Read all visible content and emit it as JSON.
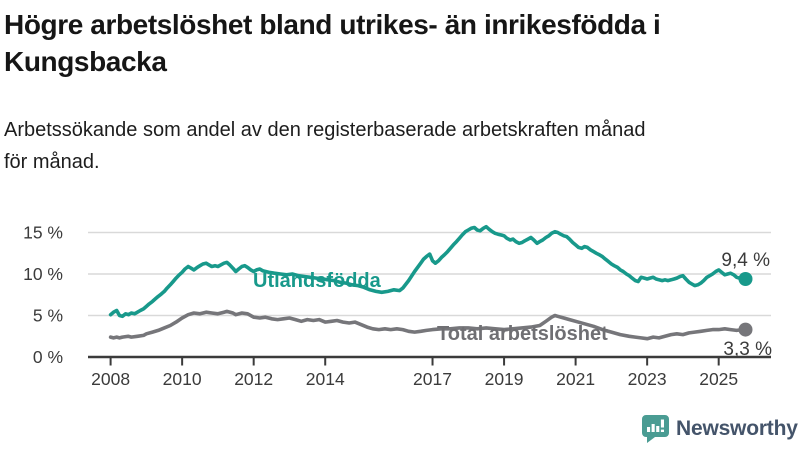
{
  "header": {
    "title_line1": "Högre arbetslöshet bland utrikes- än inrikesfödda i",
    "title_line2": "Kungsbacka",
    "subtitle_line1": "Arbetssökande som andel av den registerbaserade arbetskraften månad",
    "subtitle_line2": "för månad."
  },
  "branding": {
    "wordmark": "Newsworthy",
    "icon": "newsworthy-speech-bubble-chart-icon",
    "icon_color": "#4a9c93",
    "text_color": "#44546a"
  },
  "chart_data": {
    "type": "line",
    "title": "Högre arbetslöshet bland utrikes- än inrikesfödda i Kungsbacka",
    "subtitle": "Arbetssökande som andel av den registerbaserade arbetskraften månad för månad.",
    "x_unit": "year, monthly observations",
    "xlim": [
      2008,
      2025.75
    ],
    "ylim": [
      0,
      16.5
    ],
    "grid": true,
    "legend_position": "inline-labels",
    "axis_color": "#3b3b3b",
    "grid_color": "#d9d9d9",
    "tick_label_color": "#3b3b3b",
    "x_ticks": [
      "2008",
      "2010",
      "2012",
      "2014",
      "2017",
      "2019",
      "2021",
      "2023",
      "2025"
    ],
    "x_tick_years": [
      2008,
      2010,
      2012,
      2014,
      2017,
      2019,
      2021,
      2023,
      2025
    ],
    "y_ticks": [
      "0 %",
      "5 %",
      "10 %",
      "15 %"
    ],
    "y_tick_values": [
      0,
      5,
      10,
      15
    ],
    "series": [
      {
        "name": "Utlandsfödda",
        "color": "#18998b",
        "end_label": "9,4 %",
        "end_value": 9.4,
        "points": [
          [
            2008.0,
            5.1
          ],
          [
            2008.08,
            5.4
          ],
          [
            2008.17,
            5.6
          ],
          [
            2008.25,
            5.0
          ],
          [
            2008.33,
            4.9
          ],
          [
            2008.42,
            5.2
          ],
          [
            2008.5,
            5.1
          ],
          [
            2008.58,
            5.3
          ],
          [
            2008.67,
            5.2
          ],
          [
            2008.75,
            5.4
          ],
          [
            2008.83,
            5.6
          ],
          [
            2008.92,
            5.8
          ],
          [
            2009.0,
            6.1
          ],
          [
            2009.08,
            6.4
          ],
          [
            2009.17,
            6.7
          ],
          [
            2009.25,
            7.0
          ],
          [
            2009.33,
            7.3
          ],
          [
            2009.42,
            7.6
          ],
          [
            2009.5,
            7.9
          ],
          [
            2009.58,
            8.3
          ],
          [
            2009.67,
            8.7
          ],
          [
            2009.75,
            9.1
          ],
          [
            2009.83,
            9.5
          ],
          [
            2009.92,
            9.9
          ],
          [
            2010.0,
            10.2
          ],
          [
            2010.08,
            10.6
          ],
          [
            2010.17,
            10.9
          ],
          [
            2010.25,
            10.7
          ],
          [
            2010.33,
            10.5
          ],
          [
            2010.42,
            10.8
          ],
          [
            2010.5,
            11.0
          ],
          [
            2010.58,
            11.2
          ],
          [
            2010.67,
            11.3
          ],
          [
            2010.75,
            11.1
          ],
          [
            2010.83,
            10.9
          ],
          [
            2010.92,
            11.0
          ],
          [
            2011.0,
            10.9
          ],
          [
            2011.08,
            11.1
          ],
          [
            2011.17,
            11.3
          ],
          [
            2011.25,
            11.4
          ],
          [
            2011.33,
            11.1
          ],
          [
            2011.42,
            10.7
          ],
          [
            2011.5,
            10.3
          ],
          [
            2011.58,
            10.6
          ],
          [
            2011.67,
            10.9
          ],
          [
            2011.75,
            11.0
          ],
          [
            2011.83,
            10.8
          ],
          [
            2011.92,
            10.5
          ],
          [
            2012.0,
            10.3
          ],
          [
            2012.08,
            10.5
          ],
          [
            2012.17,
            10.6
          ],
          [
            2012.25,
            10.4
          ],
          [
            2012.42,
            10.2
          ],
          [
            2012.58,
            10.1
          ],
          [
            2012.75,
            10.0
          ],
          [
            2012.92,
            9.9
          ],
          [
            2013.08,
            10.0
          ],
          [
            2013.25,
            9.8
          ],
          [
            2013.42,
            9.7
          ],
          [
            2013.58,
            9.6
          ],
          [
            2013.75,
            9.5
          ],
          [
            2013.92,
            9.4
          ],
          [
            2014.08,
            9.3
          ],
          [
            2014.25,
            9.2
          ],
          [
            2014.42,
            9.0
          ],
          [
            2014.58,
            8.9
          ],
          [
            2014.75,
            8.7
          ],
          [
            2014.92,
            8.6
          ],
          [
            2015.08,
            8.4
          ],
          [
            2015.25,
            8.1
          ],
          [
            2015.42,
            7.9
          ],
          [
            2015.58,
            7.8
          ],
          [
            2015.75,
            7.9
          ],
          [
            2015.92,
            8.1
          ],
          [
            2016.08,
            8.0
          ],
          [
            2016.17,
            8.3
          ],
          [
            2016.33,
            9.2
          ],
          [
            2016.5,
            10.3
          ],
          [
            2016.67,
            11.3
          ],
          [
            2016.75,
            11.8
          ],
          [
            2016.83,
            12.1
          ],
          [
            2016.92,
            12.4
          ],
          [
            2017.0,
            11.6
          ],
          [
            2017.08,
            11.3
          ],
          [
            2017.17,
            11.6
          ],
          [
            2017.25,
            12.0
          ],
          [
            2017.33,
            12.3
          ],
          [
            2017.42,
            12.7
          ],
          [
            2017.5,
            13.1
          ],
          [
            2017.58,
            13.5
          ],
          [
            2017.67,
            13.9
          ],
          [
            2017.75,
            14.3
          ],
          [
            2017.83,
            14.7
          ],
          [
            2017.92,
            15.1
          ],
          [
            2018.0,
            15.3
          ],
          [
            2018.08,
            15.5
          ],
          [
            2018.17,
            15.6
          ],
          [
            2018.25,
            15.3
          ],
          [
            2018.33,
            15.2
          ],
          [
            2018.42,
            15.5
          ],
          [
            2018.5,
            15.7
          ],
          [
            2018.58,
            15.4
          ],
          [
            2018.67,
            15.1
          ],
          [
            2018.75,
            14.9
          ],
          [
            2018.83,
            14.8
          ],
          [
            2018.92,
            14.7
          ],
          [
            2019.0,
            14.6
          ],
          [
            2019.08,
            14.3
          ],
          [
            2019.17,
            14.1
          ],
          [
            2019.25,
            14.2
          ],
          [
            2019.33,
            13.9
          ],
          [
            2019.42,
            13.7
          ],
          [
            2019.5,
            13.8
          ],
          [
            2019.58,
            14.0
          ],
          [
            2019.67,
            14.2
          ],
          [
            2019.75,
            14.4
          ],
          [
            2019.83,
            14.1
          ],
          [
            2019.92,
            13.7
          ],
          [
            2020.0,
            13.9
          ],
          [
            2020.08,
            14.1
          ],
          [
            2020.17,
            14.4
          ],
          [
            2020.25,
            14.6
          ],
          [
            2020.33,
            14.9
          ],
          [
            2020.42,
            15.1
          ],
          [
            2020.5,
            15.0
          ],
          [
            2020.58,
            14.8
          ],
          [
            2020.67,
            14.6
          ],
          [
            2020.75,
            14.5
          ],
          [
            2020.83,
            14.2
          ],
          [
            2020.92,
            13.8
          ],
          [
            2021.0,
            13.5
          ],
          [
            2021.08,
            13.2
          ],
          [
            2021.17,
            13.1
          ],
          [
            2021.25,
            13.3
          ],
          [
            2021.33,
            13.2
          ],
          [
            2021.42,
            12.9
          ],
          [
            2021.5,
            12.7
          ],
          [
            2021.58,
            12.5
          ],
          [
            2021.67,
            12.3
          ],
          [
            2021.75,
            12.1
          ],
          [
            2021.83,
            11.8
          ],
          [
            2021.92,
            11.5
          ],
          [
            2022.0,
            11.2
          ],
          [
            2022.08,
            11.0
          ],
          [
            2022.17,
            10.8
          ],
          [
            2022.25,
            10.5
          ],
          [
            2022.33,
            10.3
          ],
          [
            2022.42,
            10.0
          ],
          [
            2022.5,
            9.8
          ],
          [
            2022.58,
            9.5
          ],
          [
            2022.67,
            9.2
          ],
          [
            2022.75,
            9.1
          ],
          [
            2022.83,
            9.6
          ],
          [
            2022.92,
            9.5
          ],
          [
            2023.0,
            9.4
          ],
          [
            2023.08,
            9.5
          ],
          [
            2023.17,
            9.6
          ],
          [
            2023.25,
            9.4
          ],
          [
            2023.33,
            9.3
          ],
          [
            2023.42,
            9.2
          ],
          [
            2023.5,
            9.3
          ],
          [
            2023.58,
            9.2
          ],
          [
            2023.67,
            9.3
          ],
          [
            2023.75,
            9.4
          ],
          [
            2023.83,
            9.5
          ],
          [
            2023.92,
            9.7
          ],
          [
            2024.0,
            9.8
          ],
          [
            2024.08,
            9.4
          ],
          [
            2024.17,
            9.0
          ],
          [
            2024.25,
            8.8
          ],
          [
            2024.33,
            8.6
          ],
          [
            2024.42,
            8.7
          ],
          [
            2024.5,
            8.9
          ],
          [
            2024.58,
            9.2
          ],
          [
            2024.67,
            9.6
          ],
          [
            2024.75,
            9.8
          ],
          [
            2024.83,
            10.0
          ],
          [
            2024.92,
            10.3
          ],
          [
            2025.0,
            10.5
          ],
          [
            2025.08,
            10.2
          ],
          [
            2025.17,
            9.9
          ],
          [
            2025.25,
            10.0
          ],
          [
            2025.33,
            10.1
          ],
          [
            2025.42,
            9.9
          ],
          [
            2025.5,
            9.6
          ],
          [
            2025.58,
            9.5
          ],
          [
            2025.67,
            9.3
          ],
          [
            2025.75,
            9.4
          ]
        ]
      },
      {
        "name": "Total arbetslöshet",
        "color": "#76767a",
        "end_label": "3,3 %",
        "end_value": 3.3,
        "points": [
          [
            2008.0,
            2.4
          ],
          [
            2008.08,
            2.3
          ],
          [
            2008.17,
            2.4
          ],
          [
            2008.25,
            2.3
          ],
          [
            2008.33,
            2.4
          ],
          [
            2008.5,
            2.5
          ],
          [
            2008.58,
            2.4
          ],
          [
            2008.75,
            2.5
          ],
          [
            2008.92,
            2.6
          ],
          [
            2009.0,
            2.8
          ],
          [
            2009.17,
            3.0
          ],
          [
            2009.33,
            3.2
          ],
          [
            2009.5,
            3.5
          ],
          [
            2009.67,
            3.8
          ],
          [
            2009.83,
            4.2
          ],
          [
            2010.0,
            4.7
          ],
          [
            2010.17,
            5.1
          ],
          [
            2010.33,
            5.3
          ],
          [
            2010.5,
            5.2
          ],
          [
            2010.67,
            5.4
          ],
          [
            2010.83,
            5.3
          ],
          [
            2011.0,
            5.2
          ],
          [
            2011.17,
            5.4
          ],
          [
            2011.25,
            5.5
          ],
          [
            2011.42,
            5.3
          ],
          [
            2011.5,
            5.1
          ],
          [
            2011.67,
            5.3
          ],
          [
            2011.83,
            5.2
          ],
          [
            2012.0,
            4.8
          ],
          [
            2012.17,
            4.7
          ],
          [
            2012.33,
            4.8
          ],
          [
            2012.5,
            4.6
          ],
          [
            2012.67,
            4.5
          ],
          [
            2012.83,
            4.6
          ],
          [
            2013.0,
            4.7
          ],
          [
            2013.17,
            4.5
          ],
          [
            2013.33,
            4.3
          ],
          [
            2013.5,
            4.5
          ],
          [
            2013.67,
            4.4
          ],
          [
            2013.83,
            4.5
          ],
          [
            2014.0,
            4.2
          ],
          [
            2014.17,
            4.3
          ],
          [
            2014.33,
            4.4
          ],
          [
            2014.5,
            4.2
          ],
          [
            2014.67,
            4.1
          ],
          [
            2014.83,
            4.2
          ],
          [
            2015.0,
            3.9
          ],
          [
            2015.17,
            3.6
          ],
          [
            2015.33,
            3.4
          ],
          [
            2015.5,
            3.3
          ],
          [
            2015.67,
            3.4
          ],
          [
            2015.83,
            3.3
          ],
          [
            2016.0,
            3.4
          ],
          [
            2016.17,
            3.3
          ],
          [
            2016.33,
            3.1
          ],
          [
            2016.5,
            3.0
          ],
          [
            2016.67,
            3.1
          ],
          [
            2016.83,
            3.2
          ],
          [
            2017.0,
            3.3
          ],
          [
            2017.25,
            3.4
          ],
          [
            2017.5,
            3.4
          ],
          [
            2017.75,
            3.5
          ],
          [
            2018.0,
            3.5
          ],
          [
            2018.25,
            3.4
          ],
          [
            2018.5,
            3.5
          ],
          [
            2018.75,
            3.4
          ],
          [
            2019.0,
            3.3
          ],
          [
            2019.25,
            3.4
          ],
          [
            2019.5,
            3.5
          ],
          [
            2019.75,
            3.6
          ],
          [
            2020.0,
            3.8
          ],
          [
            2020.17,
            4.3
          ],
          [
            2020.33,
            4.8
          ],
          [
            2020.42,
            5.0
          ],
          [
            2020.5,
            4.9
          ],
          [
            2020.67,
            4.7
          ],
          [
            2020.83,
            4.5
          ],
          [
            2021.0,
            4.3
          ],
          [
            2021.25,
            4.0
          ],
          [
            2021.5,
            3.7
          ],
          [
            2021.75,
            3.3
          ],
          [
            2022.0,
            3.0
          ],
          [
            2022.25,
            2.7
          ],
          [
            2022.5,
            2.5
          ],
          [
            2022.67,
            2.4
          ],
          [
            2022.83,
            2.3
          ],
          [
            2023.0,
            2.2
          ],
          [
            2023.17,
            2.4
          ],
          [
            2023.33,
            2.3
          ],
          [
            2023.5,
            2.5
          ],
          [
            2023.67,
            2.7
          ],
          [
            2023.83,
            2.8
          ],
          [
            2024.0,
            2.7
          ],
          [
            2024.17,
            2.9
          ],
          [
            2024.33,
            3.0
          ],
          [
            2024.5,
            3.1
          ],
          [
            2024.67,
            3.2
          ],
          [
            2024.83,
            3.3
          ],
          [
            2025.0,
            3.3
          ],
          [
            2025.17,
            3.4
          ],
          [
            2025.33,
            3.3
          ],
          [
            2025.5,
            3.2
          ],
          [
            2025.67,
            3.3
          ],
          [
            2025.75,
            3.3
          ]
        ]
      }
    ]
  }
}
